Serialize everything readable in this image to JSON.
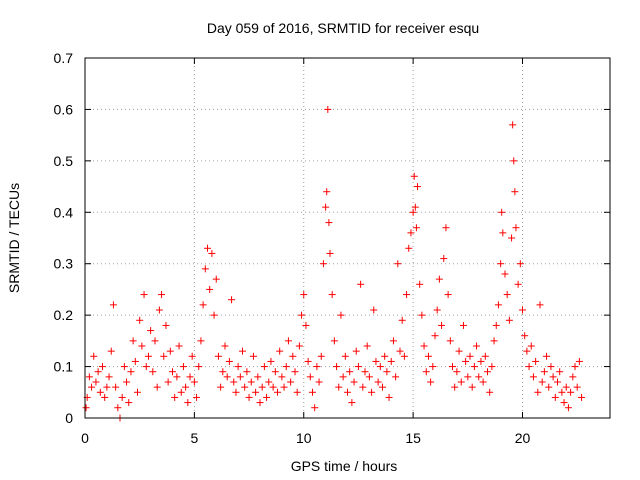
{
  "chart_data": {
    "type": "scatter",
    "title": "Day 059 of 2016, SRMTID for receiver esqu",
    "xlabel": "GPS time / hours",
    "ylabel": "SRMTID / TECUs",
    "xlim": [
      0,
      24
    ],
    "ylim": [
      0,
      0.7
    ],
    "xticks": [
      0,
      5,
      10,
      15,
      20
    ],
    "yticks": [
      0,
      0.1,
      0.2,
      0.3,
      0.4,
      0.5,
      0.6,
      0.7
    ],
    "xtick_labels": [
      "0",
      "5",
      "10",
      "15",
      "20"
    ],
    "ytick_labels": [
      "0",
      "0.1",
      "0.2",
      "0.3",
      "0.4",
      "0.5",
      "0.6",
      "0.7"
    ],
    "grid": true,
    "marker": "+",
    "color": "#ff0000",
    "series": [
      {
        "name": "SRMTID",
        "points": [
          [
            0.05,
            0.02
          ],
          [
            0.1,
            0.04
          ],
          [
            0.2,
            0.08
          ],
          [
            0.3,
            0.06
          ],
          [
            0.4,
            0.12
          ],
          [
            0.5,
            0.07
          ],
          [
            0.6,
            0.09
          ],
          [
            0.7,
            0.05
          ],
          [
            0.8,
            0.1
          ],
          [
            0.9,
            0.04
          ],
          [
            1.0,
            0.06
          ],
          [
            1.1,
            0.08
          ],
          [
            1.2,
            0.13
          ],
          [
            1.3,
            0.22
          ],
          [
            1.4,
            0.06
          ],
          [
            1.5,
            0.02
          ],
          [
            1.6,
            0.0
          ],
          [
            1.7,
            0.04
          ],
          [
            1.8,
            0.1
          ],
          [
            1.9,
            0.07
          ],
          [
            2.0,
            0.03
          ],
          [
            2.1,
            0.09
          ],
          [
            2.2,
            0.15
          ],
          [
            2.3,
            0.11
          ],
          [
            2.4,
            0.05
          ],
          [
            2.5,
            0.19
          ],
          [
            2.6,
            0.14
          ],
          [
            2.7,
            0.24
          ],
          [
            2.8,
            0.1
          ],
          [
            2.9,
            0.12
          ],
          [
            3.0,
            0.17
          ],
          [
            3.1,
            0.09
          ],
          [
            3.2,
            0.15
          ],
          [
            3.3,
            0.06
          ],
          [
            3.4,
            0.21
          ],
          [
            3.5,
            0.24
          ],
          [
            3.6,
            0.12
          ],
          [
            3.7,
            0.18
          ],
          [
            3.8,
            0.07
          ],
          [
            3.9,
            0.13
          ],
          [
            4.0,
            0.09
          ],
          [
            4.1,
            0.04
          ],
          [
            4.2,
            0.08
          ],
          [
            4.3,
            0.14
          ],
          [
            4.4,
            0.05
          ],
          [
            4.5,
            0.1
          ],
          [
            4.6,
            0.06
          ],
          [
            4.7,
            0.03
          ],
          [
            4.8,
            0.08
          ],
          [
            4.9,
            0.12
          ],
          [
            5.0,
            0.07
          ],
          [
            5.1,
            0.04
          ],
          [
            5.2,
            0.1
          ],
          [
            5.3,
            0.15
          ],
          [
            5.4,
            0.22
          ],
          [
            5.5,
            0.29
          ],
          [
            5.6,
            0.33
          ],
          [
            5.7,
            0.25
          ],
          [
            5.8,
            0.32
          ],
          [
            5.9,
            0.2
          ],
          [
            6.0,
            0.27
          ],
          [
            6.1,
            0.12
          ],
          [
            6.2,
            0.06
          ],
          [
            6.3,
            0.09
          ],
          [
            6.4,
            0.14
          ],
          [
            6.5,
            0.08
          ],
          [
            6.6,
            0.11
          ],
          [
            6.7,
            0.23
          ],
          [
            6.8,
            0.07
          ],
          [
            6.9,
            0.05
          ],
          [
            7.0,
            0.1
          ],
          [
            7.1,
            0.08
          ],
          [
            7.2,
            0.13
          ],
          [
            7.3,
            0.06
          ],
          [
            7.4,
            0.09
          ],
          [
            7.5,
            0.04
          ],
          [
            7.6,
            0.07
          ],
          [
            7.7,
            0.12
          ],
          [
            7.8,
            0.05
          ],
          [
            7.9,
            0.08
          ],
          [
            8.0,
            0.03
          ],
          [
            8.1,
            0.06
          ],
          [
            8.2,
            0.1
          ],
          [
            8.3,
            0.04
          ],
          [
            8.4,
            0.07
          ],
          [
            8.5,
            0.11
          ],
          [
            8.6,
            0.06
          ],
          [
            8.7,
            0.09
          ],
          [
            8.8,
            0.05
          ],
          [
            8.9,
            0.13
          ],
          [
            9.0,
            0.08
          ],
          [
            9.1,
            0.06
          ],
          [
            9.2,
            0.1
          ],
          [
            9.3,
            0.15
          ],
          [
            9.4,
            0.07
          ],
          [
            9.5,
            0.12
          ],
          [
            9.6,
            0.09
          ],
          [
            9.7,
            0.05
          ],
          [
            9.8,
            0.14
          ],
          [
            9.9,
            0.2
          ],
          [
            10.0,
            0.24
          ],
          [
            10.1,
            0.18
          ],
          [
            10.2,
            0.11
          ],
          [
            10.3,
            0.08
          ],
          [
            10.4,
            0.05
          ],
          [
            10.5,
            0.02
          ],
          [
            10.6,
            0.1
          ],
          [
            10.7,
            0.07
          ],
          [
            10.8,
            0.12
          ],
          [
            10.9,
            0.3
          ],
          [
            11.0,
            0.41
          ],
          [
            11.05,
            0.44
          ],
          [
            11.1,
            0.6
          ],
          [
            11.15,
            0.38
          ],
          [
            11.2,
            0.32
          ],
          [
            11.3,
            0.24
          ],
          [
            11.4,
            0.15
          ],
          [
            11.5,
            0.1
          ],
          [
            11.6,
            0.06
          ],
          [
            11.7,
            0.2
          ],
          [
            11.8,
            0.08
          ],
          [
            11.9,
            0.12
          ],
          [
            12.0,
            0.05
          ],
          [
            12.1,
            0.09
          ],
          [
            12.2,
            0.03
          ],
          [
            12.3,
            0.07
          ],
          [
            12.4,
            0.13
          ],
          [
            12.5,
            0.1
          ],
          [
            12.6,
            0.26
          ],
          [
            12.7,
            0.06
          ],
          [
            12.8,
            0.09
          ],
          [
            12.9,
            0.14
          ],
          [
            13.0,
            0.08
          ],
          [
            13.1,
            0.05
          ],
          [
            13.2,
            0.21
          ],
          [
            13.3,
            0.11
          ],
          [
            13.4,
            0.07
          ],
          [
            13.5,
            0.1
          ],
          [
            13.6,
            0.06
          ],
          [
            13.7,
            0.12
          ],
          [
            13.8,
            0.09
          ],
          [
            13.9,
            0.04
          ],
          [
            14.0,
            0.11
          ],
          [
            14.1,
            0.15
          ],
          [
            14.2,
            0.08
          ],
          [
            14.3,
            0.3
          ],
          [
            14.4,
            0.13
          ],
          [
            14.5,
            0.19
          ],
          [
            14.6,
            0.12
          ],
          [
            14.7,
            0.24
          ],
          [
            14.8,
            0.33
          ],
          [
            14.9,
            0.36
          ],
          [
            15.0,
            0.4
          ],
          [
            15.05,
            0.47
          ],
          [
            15.1,
            0.41
          ],
          [
            15.15,
            0.37
          ],
          [
            15.2,
            0.45
          ],
          [
            15.3,
            0.26
          ],
          [
            15.4,
            0.2
          ],
          [
            15.5,
            0.14
          ],
          [
            15.6,
            0.09
          ],
          [
            15.7,
            0.12
          ],
          [
            15.8,
            0.07
          ],
          [
            15.9,
            0.1
          ],
          [
            16.0,
            0.16
          ],
          [
            16.1,
            0.21
          ],
          [
            16.2,
            0.27
          ],
          [
            16.3,
            0.18
          ],
          [
            16.4,
            0.31
          ],
          [
            16.5,
            0.37
          ],
          [
            16.6,
            0.24
          ],
          [
            16.7,
            0.15
          ],
          [
            16.8,
            0.1
          ],
          [
            16.9,
            0.06
          ],
          [
            17.0,
            0.09
          ],
          [
            17.1,
            0.13
          ],
          [
            17.2,
            0.07
          ],
          [
            17.3,
            0.18
          ],
          [
            17.4,
            0.11
          ],
          [
            17.5,
            0.08
          ],
          [
            17.6,
            0.12
          ],
          [
            17.7,
            0.06
          ],
          [
            17.8,
            0.1
          ],
          [
            17.9,
            0.14
          ],
          [
            18.0,
            0.08
          ],
          [
            18.1,
            0.11
          ],
          [
            18.2,
            0.07
          ],
          [
            18.3,
            0.12
          ],
          [
            18.4,
            0.09
          ],
          [
            18.5,
            0.05
          ],
          [
            18.6,
            0.1
          ],
          [
            18.7,
            0.15
          ],
          [
            18.8,
            0.18
          ],
          [
            18.9,
            0.22
          ],
          [
            19.0,
            0.3
          ],
          [
            19.05,
            0.4
          ],
          [
            19.1,
            0.36
          ],
          [
            19.2,
            0.28
          ],
          [
            19.3,
            0.24
          ],
          [
            19.4,
            0.19
          ],
          [
            19.5,
            0.35
          ],
          [
            19.55,
            0.57
          ],
          [
            19.6,
            0.5
          ],
          [
            19.65,
            0.44
          ],
          [
            19.7,
            0.37
          ],
          [
            19.8,
            0.26
          ],
          [
            19.9,
            0.3
          ],
          [
            20.0,
            0.21
          ],
          [
            20.1,
            0.16
          ],
          [
            20.2,
            0.13
          ],
          [
            20.3,
            0.1
          ],
          [
            20.4,
            0.14
          ],
          [
            20.5,
            0.08
          ],
          [
            20.6,
            0.11
          ],
          [
            20.7,
            0.05
          ],
          [
            20.8,
            0.22
          ],
          [
            20.9,
            0.07
          ],
          [
            21.0,
            0.09
          ],
          [
            21.1,
            0.12
          ],
          [
            21.2,
            0.06
          ],
          [
            21.3,
            0.1
          ],
          [
            21.4,
            0.08
          ],
          [
            21.5,
            0.04
          ],
          [
            21.6,
            0.07
          ],
          [
            21.7,
            0.09
          ],
          [
            21.8,
            0.05
          ],
          [
            21.9,
            0.03
          ],
          [
            22.0,
            0.06
          ],
          [
            22.1,
            0.02
          ],
          [
            22.2,
            0.05
          ],
          [
            22.3,
            0.08
          ],
          [
            22.4,
            0.1
          ],
          [
            22.5,
            0.06
          ],
          [
            22.6,
            0.11
          ],
          [
            22.7,
            0.04
          ]
        ]
      }
    ]
  }
}
